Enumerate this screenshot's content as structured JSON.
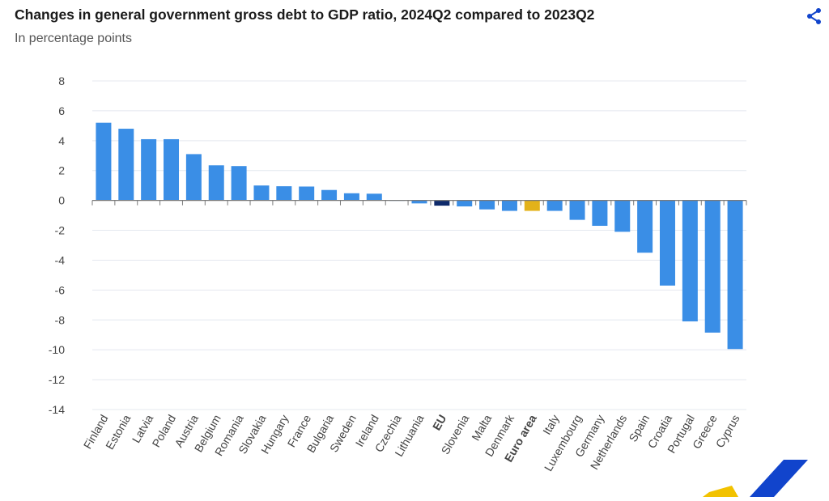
{
  "header": {
    "title": "Changes in general government gross debt to GDP ratio, 2024Q2 compared to 2023Q2",
    "subtitle": "In percentage points",
    "share_icon": "share-icon"
  },
  "colors": {
    "bar": "#3a8ee6",
    "eu": "#0e2a6b",
    "euro_area": "#e3b21a",
    "grid": "#e4e8ef",
    "axis": "#7a7a7a",
    "text": "#444444",
    "logo_blue": "#1144cc",
    "logo_yellow": "#f2c200"
  },
  "chart_data": {
    "type": "bar",
    "categories": [
      "Finland",
      "Estonia",
      "Latvia",
      "Poland",
      "Austria",
      "Belgium",
      "Romania",
      "Slovakia",
      "Hungary",
      "France",
      "Bulgaria",
      "Sweden",
      "Ireland",
      "Czechia",
      "Lithuania",
      "EU",
      "Slovenia",
      "Malta",
      "Denmark",
      "Euro area",
      "Italy",
      "Luxembourg",
      "Germany",
      "Netherlands",
      "Spain",
      "Croatia",
      "Portugal",
      "Greece",
      "Cyprus"
    ],
    "values": [
      5.2,
      4.8,
      4.1,
      4.1,
      3.1,
      2.35,
      2.3,
      1.0,
      0.95,
      0.93,
      0.7,
      0.48,
      0.45,
      0.0,
      -0.2,
      -0.35,
      -0.4,
      -0.6,
      -0.7,
      -0.7,
      -0.7,
      -1.3,
      -1.7,
      -2.1,
      -3.5,
      -5.7,
      -8.1,
      -8.85,
      -9.95
    ],
    "highlight": {
      "EU": "eu",
      "Euro area": "euro_area"
    },
    "bold_categories": [
      "EU",
      "Euro area"
    ],
    "ylim": [
      -14,
      8
    ],
    "yticks": [
      8,
      6,
      4,
      2,
      0,
      -2,
      -4,
      -6,
      -8,
      -10,
      -12,
      -14
    ],
    "grid": true,
    "xlabel": "",
    "ylabel": ""
  }
}
